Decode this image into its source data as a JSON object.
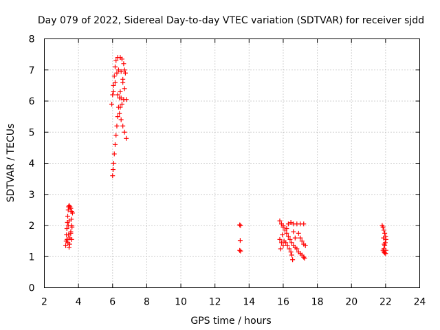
{
  "chart_data": {
    "type": "scatter",
    "title": "Day 079 of 2022, Sidereal Day-to-day VTEC variation (SDTVAR) for receiver sjdd",
    "xlabel": "GPS time / hours",
    "ylabel": "SDTVAR / TECUs",
    "xlim": [
      2,
      24
    ],
    "ylim": [
      0,
      8
    ],
    "xticks": [
      "2",
      "4",
      "6",
      "8",
      "10",
      "12",
      "14",
      "16",
      "18",
      "20",
      "22",
      "24"
    ],
    "yticks": [
      "0",
      "1",
      "2",
      "3",
      "4",
      "5",
      "6",
      "7",
      "8"
    ],
    "grid": true,
    "marker": "plus",
    "color": "#ff0000",
    "series": [
      {
        "name": "SDTVAR",
        "points": [
          [
            3.25,
            1.35
          ],
          [
            3.28,
            1.5
          ],
          [
            3.3,
            1.7
          ],
          [
            3.32,
            1.9
          ],
          [
            3.35,
            2.1
          ],
          [
            3.37,
            2.3
          ],
          [
            3.4,
            2.5
          ],
          [
            3.42,
            2.6
          ],
          [
            3.45,
            2.65
          ],
          [
            3.5,
            2.6
          ],
          [
            3.55,
            2.55
          ],
          [
            3.6,
            2.45
          ],
          [
            3.65,
            2.4
          ],
          [
            3.58,
            2.2
          ],
          [
            3.6,
            2.0
          ],
          [
            3.55,
            1.8
          ],
          [
            3.5,
            1.6
          ],
          [
            3.48,
            1.4
          ],
          [
            3.45,
            1.3
          ],
          [
            3.38,
            1.45
          ],
          [
            3.33,
            1.55
          ],
          [
            3.55,
            1.75
          ],
          [
            3.62,
            1.95
          ],
          [
            3.4,
            2.0
          ],
          [
            3.45,
            2.15
          ],
          [
            3.6,
            1.55
          ],
          [
            3.42,
            1.7
          ],
          [
            6.0,
            3.6
          ],
          [
            6.03,
            3.8
          ],
          [
            6.06,
            4.0
          ],
          [
            6.1,
            4.3
          ],
          [
            6.15,
            4.6
          ],
          [
            6.2,
            4.9
          ],
          [
            6.25,
            5.2
          ],
          [
            6.3,
            5.5
          ],
          [
            6.35,
            5.8
          ],
          [
            6.4,
            6.1
          ],
          [
            6.45,
            6.3
          ],
          [
            5.95,
            5.9
          ],
          [
            6.0,
            6.2
          ],
          [
            6.05,
            6.5
          ],
          [
            6.1,
            6.8
          ],
          [
            6.15,
            7.1
          ],
          [
            6.2,
            7.3
          ],
          [
            6.3,
            7.4
          ],
          [
            6.45,
            7.4
          ],
          [
            6.55,
            7.35
          ],
          [
            6.65,
            7.2
          ],
          [
            6.7,
            7.0
          ],
          [
            6.75,
            6.9
          ],
          [
            6.6,
            6.7
          ],
          [
            6.5,
            6.95
          ],
          [
            6.35,
            7.0
          ],
          [
            6.25,
            6.9
          ],
          [
            6.15,
            6.6
          ],
          [
            6.05,
            6.3
          ],
          [
            6.3,
            6.2
          ],
          [
            6.5,
            6.1
          ],
          [
            6.65,
            6.05
          ],
          [
            6.8,
            6.05
          ],
          [
            6.4,
            5.6
          ],
          [
            6.5,
            5.4
          ],
          [
            6.6,
            5.2
          ],
          [
            6.7,
            5.0
          ],
          [
            6.8,
            4.8
          ],
          [
            6.55,
            5.9
          ],
          [
            6.45,
            5.8
          ],
          [
            6.6,
            6.6
          ],
          [
            6.7,
            6.4
          ],
          [
            13.45,
            2.02
          ],
          [
            13.5,
            2.0
          ],
          [
            13.48,
            1.52
          ],
          [
            13.45,
            1.2
          ],
          [
            13.5,
            1.18
          ],
          [
            15.8,
            2.15
          ],
          [
            15.9,
            2.05
          ],
          [
            16.0,
            1.95
          ],
          [
            16.1,
            1.85
          ],
          [
            16.2,
            1.75
          ],
          [
            16.3,
            1.65
          ],
          [
            16.4,
            1.55
          ],
          [
            16.5,
            1.45
          ],
          [
            16.6,
            1.35
          ],
          [
            16.7,
            1.3
          ],
          [
            16.8,
            1.25
          ],
          [
            16.9,
            1.15
          ],
          [
            17.0,
            1.1
          ],
          [
            17.1,
            1.05
          ],
          [
            17.2,
            0.98
          ],
          [
            17.25,
            0.95
          ],
          [
            15.8,
            1.55
          ],
          [
            15.9,
            1.45
          ],
          [
            16.0,
            1.35
          ],
          [
            15.85,
            1.25
          ],
          [
            16.05,
            1.5
          ],
          [
            16.15,
            1.45
          ],
          [
            16.25,
            1.35
          ],
          [
            16.35,
            1.25
          ],
          [
            16.45,
            1.15
          ],
          [
            16.5,
            1.05
          ],
          [
            16.55,
            0.9
          ],
          [
            16.45,
            2.1
          ],
          [
            16.6,
            2.05
          ],
          [
            16.8,
            2.05
          ],
          [
            17.0,
            2.05
          ],
          [
            17.2,
            2.05
          ],
          [
            16.9,
            1.75
          ],
          [
            17.0,
            1.6
          ],
          [
            17.1,
            1.5
          ],
          [
            17.2,
            1.4
          ],
          [
            17.3,
            1.35
          ],
          [
            16.0,
            2.0
          ],
          [
            16.2,
            1.9
          ],
          [
            16.3,
            2.05
          ],
          [
            15.95,
            1.7
          ],
          [
            16.7,
            1.6
          ],
          [
            16.6,
            1.8
          ],
          [
            21.8,
            2.0
          ],
          [
            21.85,
            1.95
          ],
          [
            21.9,
            1.85
          ],
          [
            21.95,
            1.75
          ],
          [
            22.0,
            1.65
          ],
          [
            22.02,
            1.55
          ],
          [
            21.98,
            1.45
          ],
          [
            21.95,
            1.35
          ],
          [
            21.9,
            1.25
          ],
          [
            21.85,
            1.2
          ],
          [
            21.9,
            1.15
          ],
          [
            21.95,
            1.12
          ],
          [
            22.0,
            1.1
          ],
          [
            22.02,
            1.2
          ],
          [
            21.92,
            1.4
          ],
          [
            21.88,
            1.6
          ]
        ]
      }
    ]
  }
}
